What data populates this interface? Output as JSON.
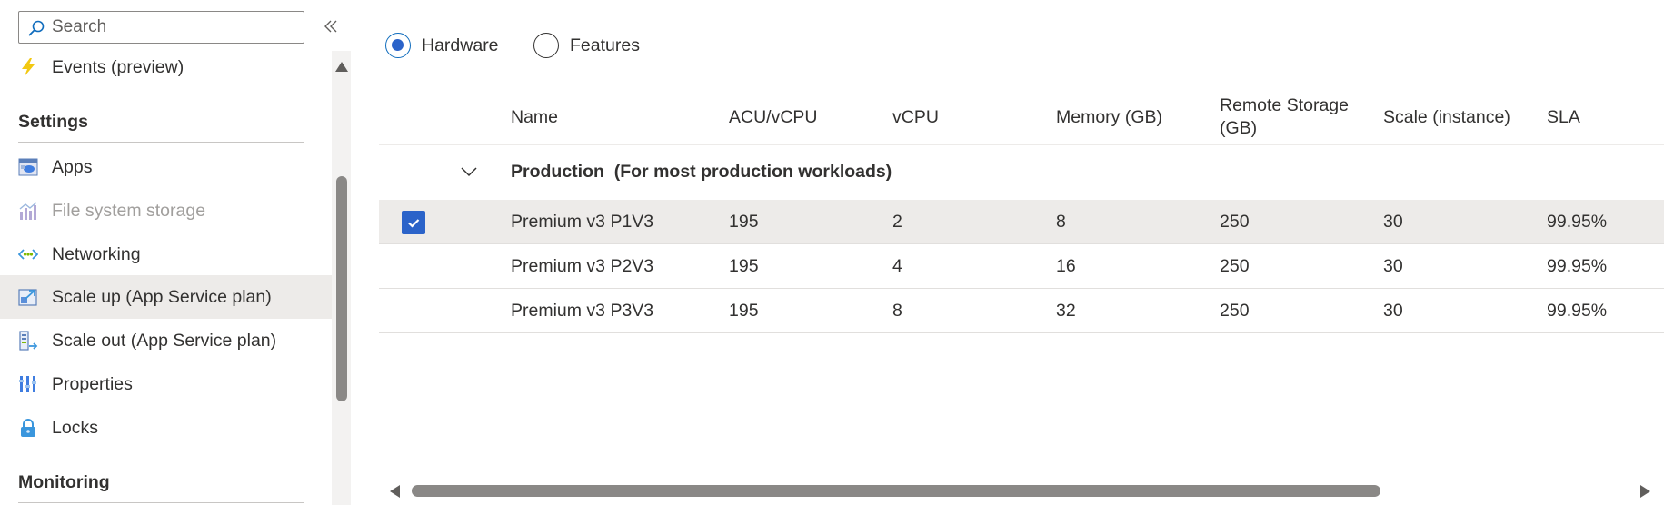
{
  "sidebar": {
    "search": {
      "placeholder": "Search",
      "value": ""
    },
    "collapse_icon": "double-chevron-left-icon",
    "items_top": [
      {
        "label": "Events (preview)",
        "icon": "lightning-icon",
        "color": "#f2c811"
      }
    ],
    "settings_header": "Settings",
    "settings_items": [
      {
        "label": "Apps",
        "icon": "apps-icon"
      },
      {
        "label": "File system storage",
        "icon": "storage-chart-icon",
        "disabled": true
      },
      {
        "label": "Networking",
        "icon": "networking-icon"
      },
      {
        "label": "Scale up (App Service plan)",
        "icon": "scale-up-icon",
        "selected": true
      },
      {
        "label": "Scale out (App Service plan)",
        "icon": "scale-out-icon"
      },
      {
        "label": "Properties",
        "icon": "properties-icon"
      },
      {
        "label": "Locks",
        "icon": "lock-icon"
      }
    ],
    "monitoring_header": "Monitoring"
  },
  "main": {
    "view_options": [
      {
        "label": "Hardware",
        "checked": true
      },
      {
        "label": "Features",
        "checked": false
      }
    ],
    "columns": [
      "Name",
      "ACU/vCPU",
      "vCPU",
      "Memory (GB)",
      "Remote Storage (GB)",
      "Scale (instance)",
      "SLA"
    ],
    "group": {
      "label": "Production  (For most production workloads)",
      "expanded": true,
      "rows": [
        {
          "selected": true,
          "name": "Premium v3 P1V3",
          "acu": "195",
          "vcpu": "2",
          "memory": "8",
          "storage": "250",
          "scale": "30",
          "sla": "99.95%"
        },
        {
          "selected": false,
          "name": "Premium v3 P2V3",
          "acu": "195",
          "vcpu": "4",
          "memory": "16",
          "storage": "250",
          "scale": "30",
          "sla": "99.95%"
        },
        {
          "selected": false,
          "name": "Premium v3 P3V3",
          "acu": "195",
          "vcpu": "8",
          "memory": "32",
          "storage": "250",
          "scale": "30",
          "sla": "99.95%"
        }
      ]
    }
  },
  "colors": {
    "accent": "#2b63c9",
    "selection": "#edebe9",
    "text": "#323130",
    "disabled_text": "#a19f9d"
  }
}
